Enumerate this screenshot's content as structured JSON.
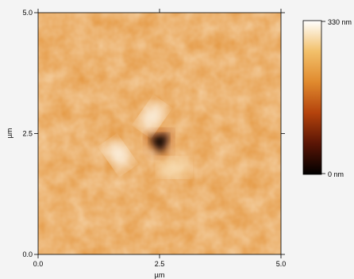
{
  "chart_data": {
    "type": "heatmap",
    "title": "",
    "xlabel": "µm",
    "ylabel": "µm",
    "xlim": [
      0,
      5.0
    ],
    "ylim": [
      0,
      5.0
    ],
    "x_ticks": [
      {
        "value": 0.0,
        "label": "0.0"
      },
      {
        "value": 2.5,
        "label": "2.5"
      },
      {
        "value": 5.0,
        "label": "5.0"
      }
    ],
    "y_ticks": [
      {
        "value": 0.0,
        "label": "0.0"
      },
      {
        "value": 2.5,
        "label": "2.5"
      },
      {
        "value": 5.0,
        "label": "5.0"
      }
    ],
    "colorbar": {
      "min": 0,
      "max": 330,
      "unit": "nm",
      "min_label": "0 nm",
      "max_label": "330 nm",
      "colors": [
        "#000000",
        "#5a1505",
        "#b4430c",
        "#e08a2e",
        "#f2c06a",
        "#ffffff"
      ]
    },
    "base_height_nm": 205,
    "features": [
      {
        "kind": "indent-pit",
        "x": 2.5,
        "y": 2.3,
        "depth_nm": 0
      },
      {
        "kind": "pile-up",
        "x": 2.35,
        "y": 2.85,
        "height_nm": 320
      },
      {
        "kind": "pile-up",
        "x": 1.65,
        "y": 2.05,
        "height_nm": 320
      },
      {
        "kind": "pile-up",
        "x": 2.8,
        "y": 1.8,
        "height_nm": 300
      }
    ]
  }
}
